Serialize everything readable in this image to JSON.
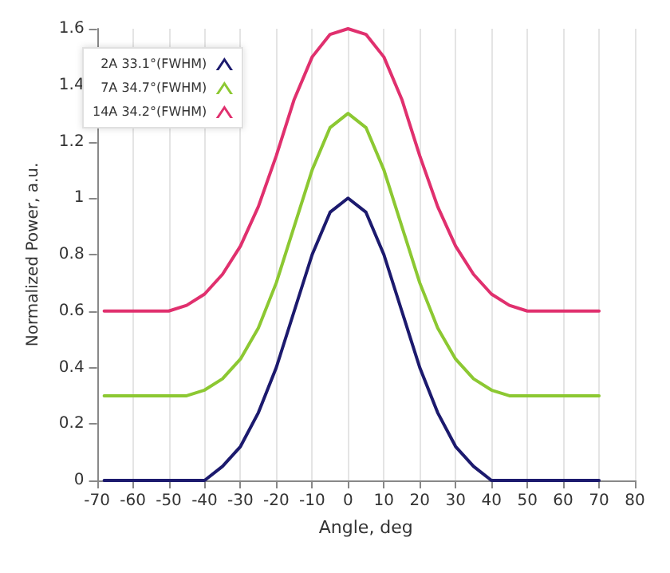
{
  "chart_data": {
    "type": "line",
    "xlabel": "Angle, deg",
    "ylabel": "Normalized Power, a.u.",
    "xlim": [
      -70,
      80
    ],
    "xticks": [
      -70,
      -60,
      -50,
      -40,
      -30,
      -20,
      -10,
      0,
      10,
      20,
      30,
      40,
      50,
      60,
      70,
      80
    ],
    "ylim": [
      0,
      1.6
    ],
    "yticks": [
      0,
      0.2,
      0.4,
      0.6,
      0.8,
      1,
      1.2,
      1.4,
      1.6
    ],
    "grid": "x",
    "legend": "top left",
    "marker": "none",
    "line_style": "solid",
    "series": [
      {
        "name": "2A 33.1°(FWHM)",
        "color": "#1c1a6e",
        "x": [
          -68,
          -40,
          -35,
          -30,
          -25,
          -20,
          -15,
          -10,
          -5,
          0,
          5,
          10,
          15,
          20,
          25,
          30,
          35,
          40,
          70
        ],
        "values": [
          0,
          0,
          0.05,
          0.12,
          0.24,
          0.4,
          0.6,
          0.8,
          0.95,
          1,
          0.95,
          0.8,
          0.6,
          0.4,
          0.24,
          0.12,
          0.05,
          0,
          0
        ]
      },
      {
        "name": "7A 34.7°(FWHM)",
        "color": "#8cc832",
        "x": [
          -68,
          -45,
          -40,
          -35,
          -30,
          -25,
          -20,
          -15,
          -10,
          -5,
          0,
          5,
          10,
          15,
          20,
          25,
          30,
          35,
          40,
          45,
          70
        ],
        "values": [
          0.3,
          0.3,
          0.32,
          0.36,
          0.43,
          0.54,
          0.7,
          0.9,
          1.1,
          1.25,
          1.3,
          1.25,
          1.1,
          0.9,
          0.7,
          0.54,
          0.43,
          0.36,
          0.32,
          0.3,
          0.3
        ]
      },
      {
        "name": "14A 34.2°(FWHM)",
        "color": "#e0306e",
        "x": [
          -68,
          -50,
          -45,
          -40,
          -35,
          -30,
          -25,
          -20,
          -15,
          -10,
          -5,
          0,
          5,
          10,
          15,
          20,
          25,
          30,
          35,
          40,
          45,
          50,
          70
        ],
        "values": [
          0.6,
          0.6,
          0.62,
          0.66,
          0.73,
          0.83,
          0.97,
          1.15,
          1.35,
          1.5,
          1.58,
          1.6,
          1.58,
          1.5,
          1.35,
          1.15,
          0.97,
          0.83,
          0.73,
          0.66,
          0.62,
          0.6,
          0.6
        ]
      }
    ]
  }
}
